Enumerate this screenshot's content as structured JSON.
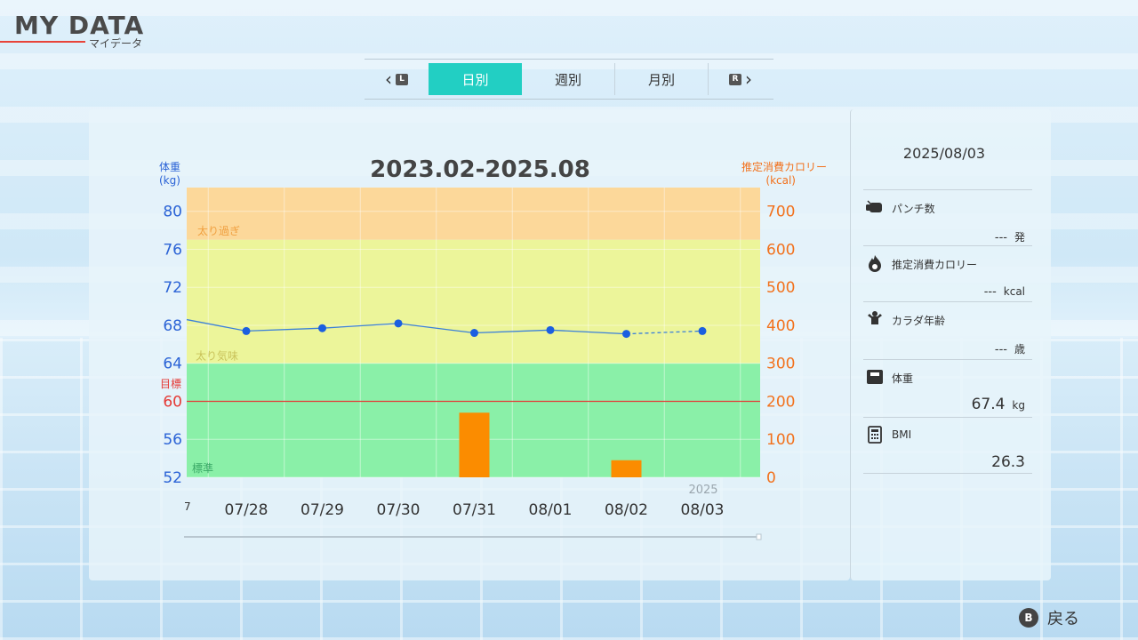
{
  "header": {
    "title": "MY DATA",
    "subtitle": "マイデータ"
  },
  "tabs": {
    "prev_button": "L",
    "next_button": "R",
    "items": [
      {
        "label": "日別",
        "active": true
      },
      {
        "label": "週別",
        "active": false
      },
      {
        "label": "月別",
        "active": false
      }
    ]
  },
  "chart": {
    "title": "2023.02-2025.08",
    "left_axis_title_line1": "体重",
    "left_axis_title_line2": "(kg)",
    "right_axis_title_line1": "推定消費カロリー",
    "right_axis_title_line2": "(kcal)",
    "goal_label": "目標",
    "year_label": "2025",
    "partial_first_label": "7",
    "zone_labels": {
      "over": "太り過ぎ",
      "slightly_over": "太り気味",
      "normal": "標準"
    },
    "colors": {
      "weight_line": "#3a7fd9",
      "weight_point": "#1b5fe0",
      "calorie_bar": "#fb8c00",
      "goal_line": "#e53935",
      "zone_over": "#fcd89a",
      "zone_slightly_over": "#ecf59a",
      "zone_normal": "#8af0a8",
      "left_axis_text": "#2b63d6",
      "right_axis_text": "#f2711c"
    }
  },
  "chart_data": {
    "type": "bar",
    "categories": [
      "07/28",
      "07/29",
      "07/30",
      "07/31",
      "08/01",
      "08/02",
      "08/03"
    ],
    "series": [
      {
        "axis": "left",
        "kind": "line",
        "values": [
          67.4,
          67.7,
          68.2,
          67.2,
          67.5,
          67.1,
          67.4
        ],
        "dashed_last_segment": true
      },
      {
        "axis": "right",
        "kind": "bar",
        "values": [
          0,
          0,
          0,
          170,
          0,
          45,
          0
        ]
      }
    ],
    "leading_value": 68.6,
    "y_left": {
      "ticks": [
        80,
        76,
        72,
        68,
        64,
        60,
        56,
        52
      ],
      "range": [
        52,
        82.5
      ]
    },
    "y_right": {
      "ticks": [
        700,
        600,
        500,
        400,
        300,
        200,
        100,
        0
      ],
      "range": [
        0,
        762
      ]
    },
    "goal_weight": 60,
    "zones": [
      {
        "name": "over",
        "from": 77,
        "to": 82.5
      },
      {
        "name": "slightly_over",
        "from": 64,
        "to": 77
      },
      {
        "name": "normal",
        "from": 52,
        "to": 64
      }
    ],
    "grid": true
  },
  "side": {
    "date": "2025/08/03",
    "items": [
      {
        "key": "punch",
        "label": "パンチ数",
        "value": "---",
        "unit": "発",
        "icon": "fist-icon"
      },
      {
        "key": "calories",
        "label": "推定消費カロリー",
        "value": "---",
        "unit": "kcal",
        "icon": "flame-icon"
      },
      {
        "key": "body_age",
        "label": "カラダ年齢",
        "value": "---",
        "unit": "歳",
        "icon": "muscle-icon"
      },
      {
        "key": "weight",
        "label": "体重",
        "value": "67.4",
        "unit": "kg",
        "icon": "scale-icon"
      },
      {
        "key": "bmi",
        "label": "BMI",
        "value": "26.3",
        "unit": "",
        "icon": "calculator-icon"
      }
    ]
  },
  "footer": {
    "back_button": "B",
    "back_label": "戻る"
  }
}
